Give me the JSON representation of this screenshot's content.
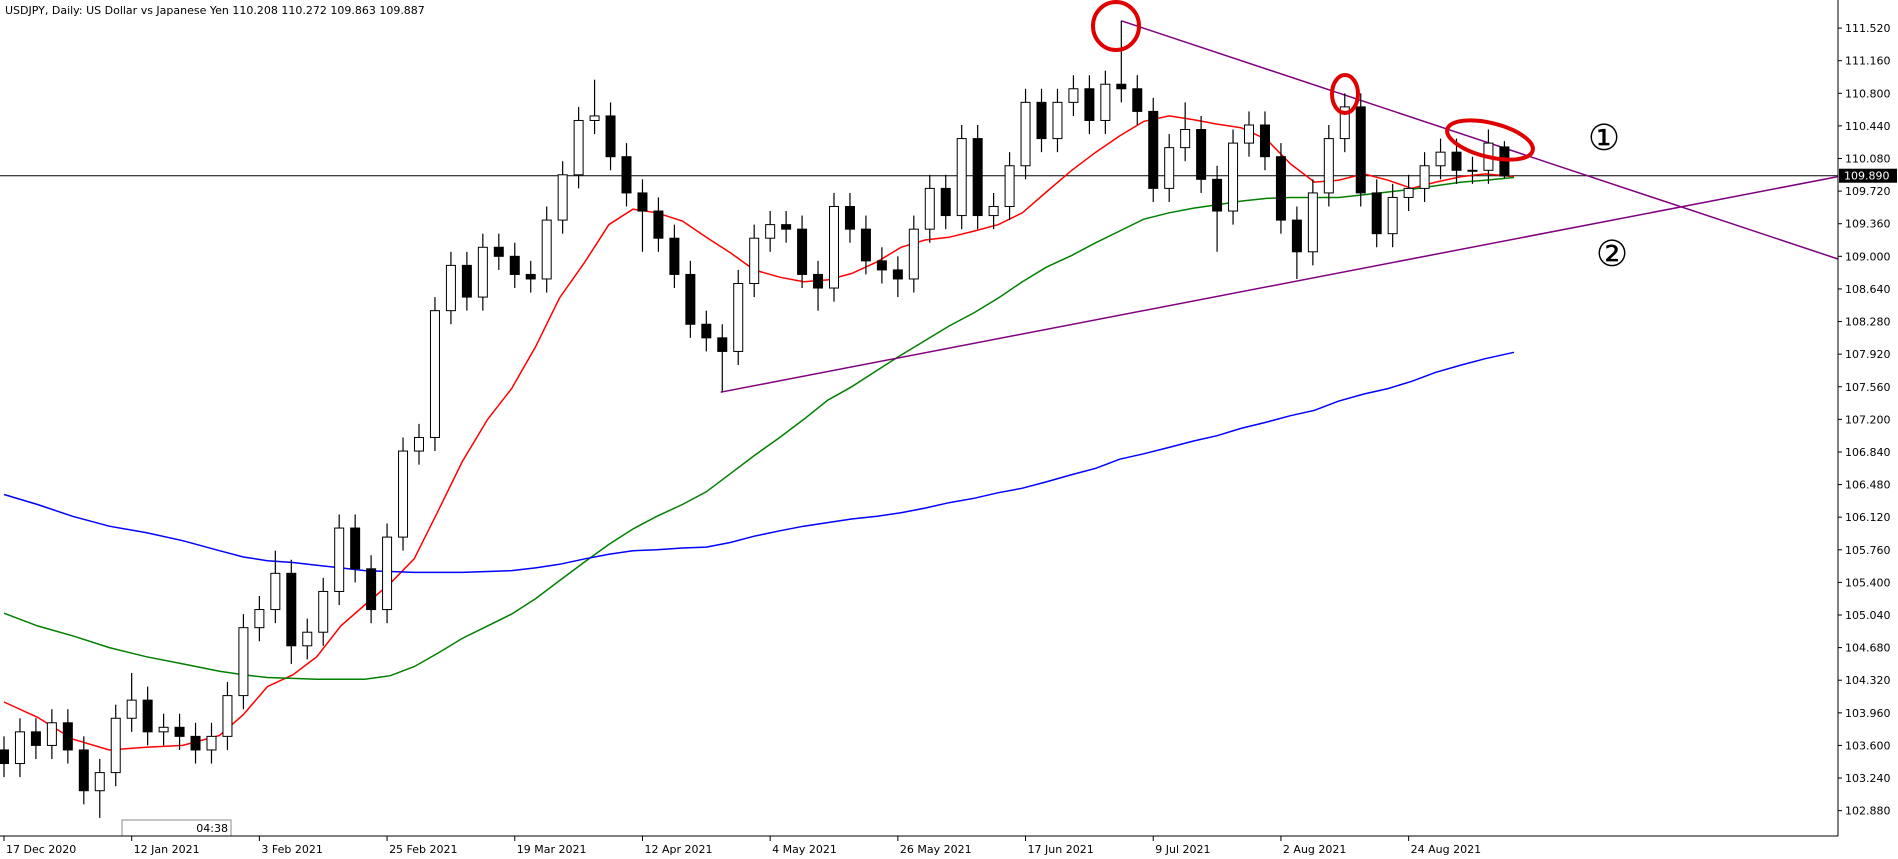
{
  "chart_data": {
    "type": "candlestick",
    "title": "USDJPY, Daily:  US Dollar vs Japanese Yen  110.208 110.272 109.863 109.887",
    "clock": "04:38",
    "xlim": [
      -0.25,
      114.9
    ],
    "ylim": [
      102.6,
      111.83
    ],
    "xticks": [
      {
        "value": 0,
        "label": "17 Dec 2020"
      },
      {
        "value": 8,
        "label": "12 Jan 2021"
      },
      {
        "value": 16,
        "label": "3 Feb 2021"
      },
      {
        "value": 24,
        "label": "25 Feb 2021"
      },
      {
        "value": 32,
        "label": "19 Mar 2021"
      },
      {
        "value": 40,
        "label": "12 Apr 2021"
      },
      {
        "value": 48,
        "label": "4 May 2021"
      },
      {
        "value": 56,
        "label": "26 May 2021"
      },
      {
        "value": 64,
        "label": "17 Jun 2021"
      },
      {
        "value": 72,
        "label": "9 Jul 2021"
      },
      {
        "value": 80,
        "label": "2 Aug 2021"
      },
      {
        "value": 88,
        "label": "24 Aug 2021"
      }
    ],
    "yticks": [
      {
        "value": 111.52,
        "label": "111.520"
      },
      {
        "value": 111.16,
        "label": "111.160"
      },
      {
        "value": 110.8,
        "label": "110.800"
      },
      {
        "value": 110.44,
        "label": "110.440"
      },
      {
        "value": 110.08,
        "label": "110.080"
      },
      {
        "value": 109.72,
        "label": "109.720"
      },
      {
        "value": 109.36,
        "label": "109.360"
      },
      {
        "value": 109.0,
        "label": "109.000"
      },
      {
        "value": 108.64,
        "label": "108.640"
      },
      {
        "value": 108.28,
        "label": "108.280"
      },
      {
        "value": 107.92,
        "label": "107.920"
      },
      {
        "value": 107.56,
        "label": "107.560"
      },
      {
        "value": 107.2,
        "label": "107.200"
      },
      {
        "value": 106.84,
        "label": "106.840"
      },
      {
        "value": 106.48,
        "label": "106.480"
      },
      {
        "value": 106.12,
        "label": "106.120"
      },
      {
        "value": 105.76,
        "label": "105.760"
      },
      {
        "value": 105.4,
        "label": "105.400"
      },
      {
        "value": 105.04,
        "label": "105.040"
      },
      {
        "value": 104.68,
        "label": "104.680"
      },
      {
        "value": 104.32,
        "label": "104.320"
      },
      {
        "value": 103.96,
        "label": "103.960"
      },
      {
        "value": 103.6,
        "label": "103.600"
      },
      {
        "value": 103.24,
        "label": "103.240"
      },
      {
        "value": 102.88,
        "label": "102.880"
      }
    ],
    "last_price": {
      "value": 109.89,
      "label": "109.890"
    },
    "color_up": "#ffffff",
    "color_down": "#000000",
    "candles": {
      "open": [
        103.55,
        103.4,
        103.75,
        103.6,
        103.85,
        103.55,
        103.1,
        103.3,
        103.9,
        104.1,
        103.75,
        103.8,
        103.7,
        103.55,
        103.7,
        104.15,
        104.9,
        105.1,
        105.5,
        104.7,
        104.85,
        105.3,
        106.0,
        105.55,
        105.1,
        105.9,
        106.85,
        107.0,
        108.4,
        108.9,
        108.55,
        109.1,
        109.0,
        108.8,
        108.75,
        109.4,
        109.9,
        110.5,
        110.55,
        110.1,
        109.7,
        109.5,
        109.2,
        108.8,
        108.25,
        108.1,
        107.95,
        108.7,
        109.2,
        109.35,
        109.3,
        108.8,
        108.65,
        109.55,
        109.3,
        108.95,
        108.85,
        108.75,
        109.3,
        109.75,
        109.45,
        110.3,
        109.45,
        109.55,
        110.0,
        110.7,
        110.3,
        110.7,
        110.85,
        110.5,
        110.9,
        110.85,
        110.6,
        109.75,
        110.2,
        110.4,
        109.85,
        109.5,
        110.25,
        110.45,
        110.1,
        109.4,
        109.05,
        109.7,
        110.3,
        110.65,
        109.7,
        109.25,
        109.65,
        109.75,
        110.0,
        110.15,
        109.95,
        109.95,
        110.208
      ],
      "high": [
        103.7,
        103.9,
        103.9,
        104.0,
        104.0,
        103.7,
        103.45,
        104.05,
        104.4,
        104.25,
        103.95,
        103.95,
        103.85,
        103.85,
        104.3,
        105.05,
        105.25,
        105.75,
        105.65,
        105.0,
        105.45,
        106.15,
        106.15,
        105.7,
        106.05,
        107.0,
        107.15,
        108.55,
        109.05,
        109.05,
        109.25,
        109.25,
        109.15,
        108.95,
        109.55,
        110.05,
        110.65,
        110.95,
        110.7,
        110.25,
        109.85,
        109.65,
        109.35,
        108.95,
        108.4,
        108.25,
        108.85,
        109.35,
        109.5,
        109.5,
        109.45,
        108.95,
        109.7,
        109.7,
        109.45,
        109.1,
        109.0,
        109.45,
        109.9,
        109.9,
        110.45,
        110.45,
        109.7,
        110.15,
        110.85,
        110.85,
        110.85,
        111.0,
        111.0,
        111.05,
        111.6,
        111.0,
        110.75,
        110.35,
        110.7,
        110.55,
        110.0,
        110.4,
        110.6,
        110.6,
        110.25,
        109.55,
        109.85,
        110.45,
        110.8,
        110.8,
        109.85,
        109.8,
        109.9,
        110.15,
        110.3,
        110.3,
        110.1,
        110.4,
        110.272
      ],
      "low": [
        103.25,
        103.25,
        103.45,
        103.45,
        103.4,
        102.95,
        102.8,
        103.15,
        103.75,
        103.6,
        103.6,
        103.55,
        103.4,
        103.4,
        103.55,
        104.0,
        104.75,
        104.95,
        104.5,
        104.55,
        104.7,
        105.15,
        105.4,
        104.95,
        104.95,
        105.75,
        106.7,
        106.85,
        108.25,
        108.4,
        108.4,
        108.85,
        108.65,
        108.6,
        108.6,
        109.25,
        109.75,
        110.35,
        109.95,
        109.55,
        109.05,
        109.05,
        108.65,
        108.1,
        107.95,
        107.5,
        107.8,
        108.55,
        109.05,
        109.15,
        108.65,
        108.4,
        108.5,
        109.15,
        108.8,
        108.7,
        108.55,
        108.6,
        109.15,
        109.3,
        109.3,
        109.3,
        109.3,
        109.4,
        109.85,
        110.15,
        110.15,
        110.55,
        110.35,
        110.35,
        110.7,
        110.45,
        109.6,
        109.6,
        110.05,
        109.7,
        109.05,
        109.35,
        110.1,
        109.95,
        109.25,
        108.75,
        108.9,
        109.55,
        110.15,
        109.55,
        109.1,
        109.1,
        109.5,
        109.6,
        109.85,
        109.8,
        109.8,
        109.8,
        109.863
      ],
      "close": [
        103.4,
        103.75,
        103.6,
        103.85,
        103.55,
        103.1,
        103.3,
        103.9,
        104.1,
        103.75,
        103.8,
        103.7,
        103.55,
        103.7,
        104.15,
        104.9,
        105.1,
        105.5,
        104.7,
        104.85,
        105.3,
        106.0,
        105.55,
        105.1,
        105.9,
        106.85,
        107.0,
        108.4,
        108.9,
        108.55,
        109.1,
        109.0,
        108.8,
        108.75,
        109.4,
        109.9,
        110.5,
        110.55,
        110.1,
        109.7,
        109.5,
        109.2,
        108.8,
        108.25,
        108.1,
        107.95,
        108.7,
        109.2,
        109.35,
        109.3,
        108.8,
        108.65,
        109.55,
        109.3,
        108.95,
        108.85,
        108.75,
        109.3,
        109.75,
        109.45,
        110.3,
        109.45,
        109.55,
        110.0,
        110.7,
        110.3,
        110.7,
        110.85,
        110.5,
        110.9,
        110.85,
        110.6,
        109.75,
        110.2,
        110.4,
        109.85,
        109.5,
        110.25,
        110.45,
        110.1,
        109.4,
        109.05,
        109.7,
        110.3,
        110.65,
        109.7,
        109.25,
        109.65,
        109.75,
        110.0,
        110.15,
        109.95,
        109.95,
        110.25,
        109.887
      ]
    },
    "series": [
      {
        "color": "#ff0000",
        "x": [
          0,
          2.1,
          4.3,
          6.6,
          8.9,
          11.2,
          13.5,
          15.0,
          16.5,
          18.1,
          19.6,
          21.1,
          22.6,
          24.2,
          25.7,
          27.2,
          28.7,
          30.3,
          31.8,
          33.3,
          34.8,
          36.4,
          37.9,
          39.4,
          40.9,
          42.5,
          44.0,
          45.5,
          47.0,
          48.6,
          50.1,
          51.6,
          53.1,
          54.7,
          56.2,
          57.7,
          59.2,
          60.8,
          62.3,
          63.8,
          65.3,
          66.9,
          68.4,
          69.9,
          71.4,
          73.0,
          74.5,
          76.0,
          77.5,
          79.1,
          80.6,
          82.1,
          83.6,
          85.2,
          86.7,
          88.2,
          89.7,
          91.3,
          92.8,
          94.6
        ],
        "values": [
          104.08,
          103.91,
          103.67,
          103.55,
          103.58,
          103.6,
          103.71,
          103.94,
          104.25,
          104.38,
          104.58,
          104.92,
          105.15,
          105.39,
          105.66,
          106.19,
          106.73,
          107.2,
          107.54,
          108.0,
          108.54,
          108.94,
          109.35,
          109.52,
          109.48,
          109.39,
          109.21,
          109.04,
          108.85,
          108.77,
          108.72,
          108.74,
          108.81,
          108.94,
          109.1,
          109.18,
          109.21,
          109.28,
          109.35,
          109.48,
          109.71,
          109.95,
          110.15,
          110.33,
          110.49,
          110.55,
          110.51,
          110.46,
          110.42,
          110.29,
          110.02,
          109.82,
          109.84,
          109.91,
          109.84,
          109.75,
          109.82,
          109.88,
          109.91,
          109.88
        ]
      },
      {
        "color": "#008000",
        "x": [
          0,
          2.1,
          4.3,
          6.6,
          8.9,
          11.2,
          13.5,
          15.0,
          16.5,
          18.1,
          19.6,
          21.1,
          22.6,
          24.2,
          25.7,
          27.2,
          28.7,
          30.3,
          31.8,
          33.3,
          34.8,
          36.4,
          37.9,
          39.4,
          40.9,
          42.5,
          44.0,
          45.5,
          47.0,
          48.6,
          50.1,
          51.6,
          53.1,
          54.7,
          56.2,
          57.7,
          59.2,
          60.8,
          62.3,
          63.8,
          65.3,
          66.9,
          68.4,
          69.9,
          71.4,
          73.0,
          74.5,
          76.0,
          77.5,
          79.1,
          80.6,
          82.1,
          83.6,
          85.2,
          86.7,
          88.2,
          89.7,
          91.3,
          92.8,
          94.6
        ],
        "values": [
          105.06,
          104.92,
          104.81,
          104.68,
          104.58,
          104.5,
          104.42,
          104.38,
          104.35,
          104.34,
          104.33,
          104.33,
          104.33,
          104.37,
          104.47,
          104.62,
          104.78,
          104.92,
          105.05,
          105.22,
          105.42,
          105.63,
          105.82,
          105.99,
          106.13,
          106.26,
          106.4,
          106.6,
          106.8,
          107.0,
          107.2,
          107.41,
          107.56,
          107.74,
          107.91,
          108.07,
          108.23,
          108.38,
          108.54,
          108.72,
          108.88,
          109.01,
          109.15,
          109.28,
          109.41,
          109.48,
          109.53,
          109.57,
          109.61,
          109.64,
          109.65,
          109.65,
          109.65,
          109.68,
          109.71,
          109.74,
          109.78,
          109.82,
          109.84,
          109.87
        ]
      },
      {
        "color": "#0000ff",
        "x": [
          0,
          2.1,
          4.3,
          6.6,
          8.9,
          11.2,
          13.5,
          15.0,
          16.5,
          18.1,
          19.6,
          21.1,
          22.6,
          24.2,
          25.7,
          27.2,
          28.7,
          30.3,
          31.8,
          33.3,
          34.8,
          36.4,
          37.9,
          39.4,
          40.9,
          42.5,
          44.0,
          45.5,
          47.0,
          48.6,
          50.1,
          51.6,
          53.1,
          54.7,
          56.2,
          57.7,
          59.2,
          60.8,
          62.3,
          63.8,
          65.3,
          66.9,
          68.4,
          69.9,
          71.4,
          73.0,
          74.5,
          76.0,
          77.5,
          79.1,
          80.6,
          82.1,
          83.6,
          85.2,
          86.7,
          88.2,
          89.7,
          91.3,
          92.8,
          94.6
        ],
        "values": [
          106.37,
          106.26,
          106.13,
          106.02,
          105.95,
          105.86,
          105.75,
          105.68,
          105.64,
          105.62,
          105.59,
          105.56,
          105.53,
          105.52,
          105.51,
          105.51,
          105.51,
          105.52,
          105.53,
          105.56,
          105.6,
          105.66,
          105.71,
          105.75,
          105.76,
          105.78,
          105.79,
          105.84,
          105.91,
          105.97,
          106.02,
          106.06,
          106.1,
          106.13,
          106.17,
          106.22,
          106.28,
          106.33,
          106.39,
          106.44,
          106.51,
          106.59,
          106.66,
          106.76,
          106.82,
          106.89,
          106.96,
          107.02,
          107.1,
          107.17,
          107.24,
          107.3,
          107.4,
          107.48,
          107.54,
          107.62,
          107.72,
          107.8,
          107.87,
          107.94
        ]
      }
    ],
    "trendlines": [
      {
        "color": "#800080",
        "x": [
          44.9,
          114.9
        ],
        "values": [
          107.5,
          109.88
        ]
      },
      {
        "color": "#800080",
        "x": [
          70.0,
          114.9
        ],
        "values": [
          111.6,
          108.97
        ]
      }
    ],
    "annotations": [
      {
        "text": "①"
      },
      {
        "text": "②"
      }
    ]
  }
}
